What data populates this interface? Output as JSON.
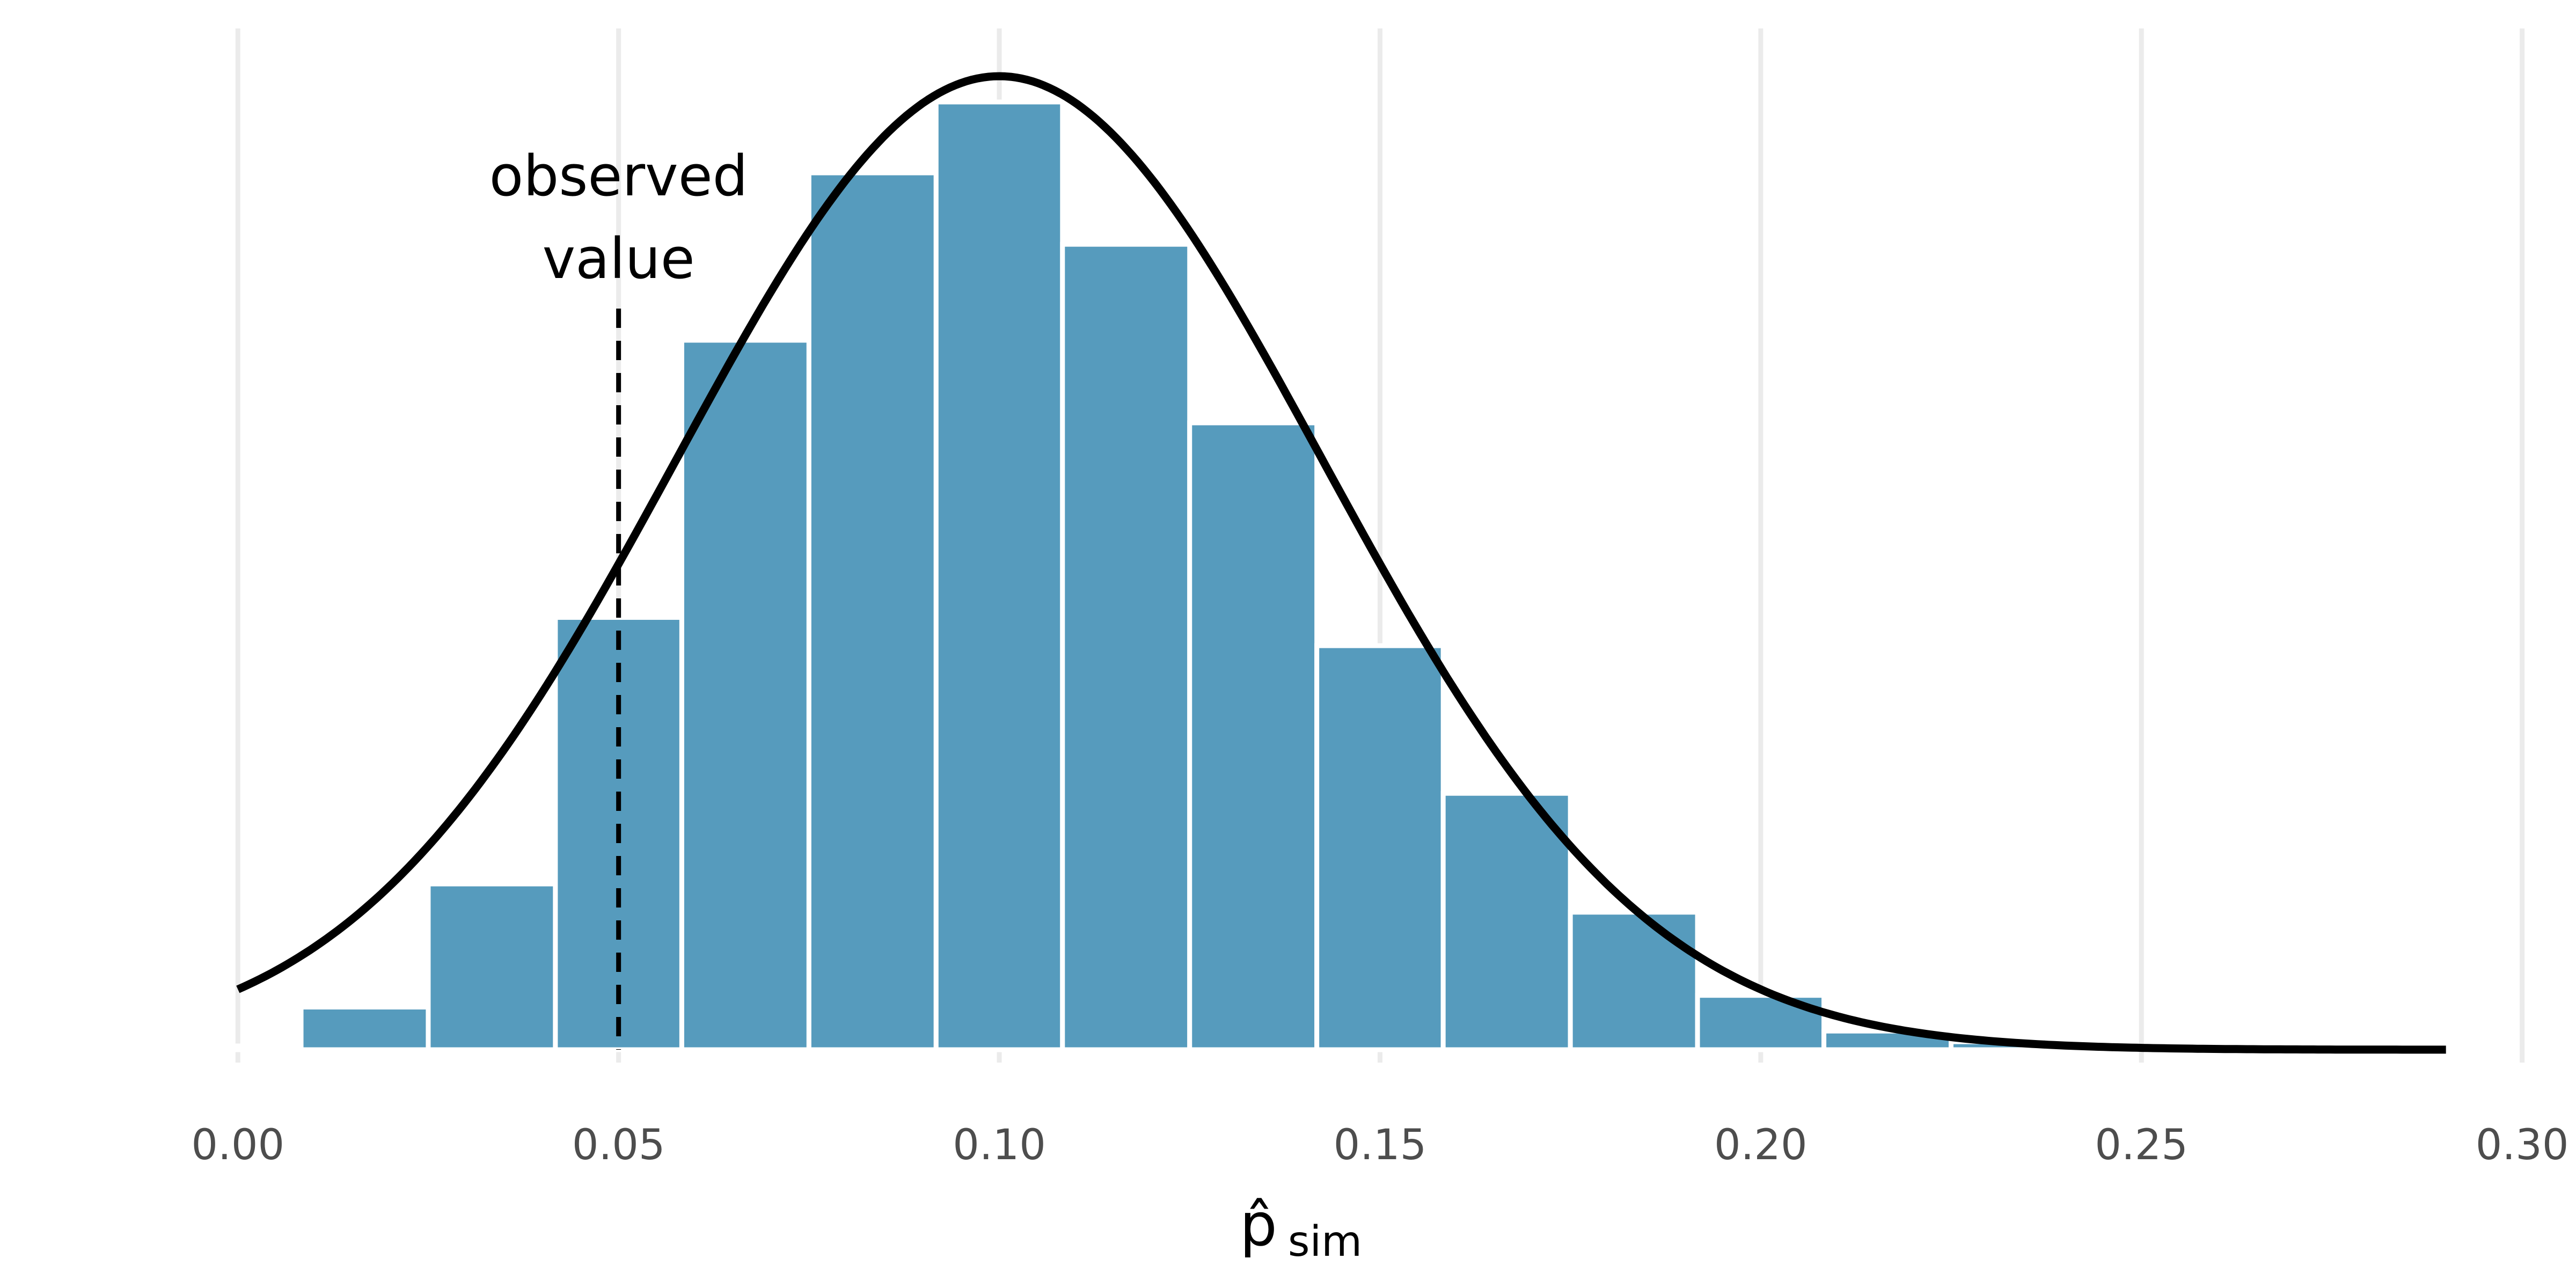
{
  "chart_data": {
    "type": "bar",
    "subtype": "histogram-with-density-curve",
    "title": "",
    "xlabel": "p̂",
    "xlabel_subscript": "sim",
    "ylabel": "",
    "xlim": [
      -0.012,
      0.302
    ],
    "ylim": [
      0,
      0.185
    ],
    "x_ticks": [
      0.0,
      0.05,
      0.1,
      0.15,
      0.2,
      0.25,
      0.3
    ],
    "x_tick_labels": [
      "0.00",
      "0.05",
      "0.10",
      "0.15",
      "0.20",
      "0.25",
      "0.30"
    ],
    "y_axis_visible": false,
    "grid": "vertical-major",
    "bars": [
      {
        "x0": -0.0083,
        "x1": 0.0083,
        "value": 0.0007
      },
      {
        "x0": 0.0083,
        "x1": 0.025,
        "value": 0.008
      },
      {
        "x0": 0.025,
        "x1": 0.0417,
        "value": 0.0311
      },
      {
        "x0": 0.0417,
        "x1": 0.0583,
        "value": 0.0811
      },
      {
        "x0": 0.0583,
        "x1": 0.075,
        "value": 0.1331
      },
      {
        "x0": 0.075,
        "x1": 0.0917,
        "value": 0.1645
      },
      {
        "x0": 0.0917,
        "x1": 0.1083,
        "value": 0.1778
      },
      {
        "x0": 0.1083,
        "x1": 0.125,
        "value": 0.1511
      },
      {
        "x0": 0.125,
        "x1": 0.1417,
        "value": 0.1176
      },
      {
        "x0": 0.1417,
        "x1": 0.1583,
        "value": 0.0758
      },
      {
        "x0": 0.1583,
        "x1": 0.175,
        "value": 0.0481
      },
      {
        "x0": 0.175,
        "x1": 0.1917,
        "value": 0.0258
      },
      {
        "x0": 0.1917,
        "x1": 0.2083,
        "value": 0.0102
      },
      {
        "x0": 0.2083,
        "x1": 0.225,
        "value": 0.0035
      },
      {
        "x0": 0.225,
        "x1": 0.2417,
        "value": 0.0015
      }
    ],
    "density_curve": {
      "distribution": "normal",
      "mean": 0.1,
      "sd": 0.0424,
      "peak_height": 0.183,
      "x_range": [
        0.0,
        0.29
      ]
    },
    "reference_line": {
      "x": 0.05,
      "style": "dashed",
      "label_lines": [
        "observed",
        "value"
      ]
    },
    "colors": {
      "bar_fill": "#569bbd",
      "bar_outline": "#ffffff",
      "grid": "#ebebeb",
      "curve": "#000000",
      "tick_text": "#4d4d4d"
    }
  }
}
